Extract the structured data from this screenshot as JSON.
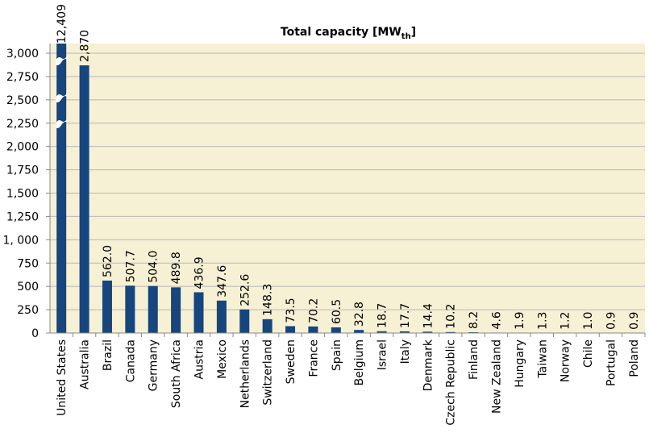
{
  "chart_data": {
    "type": "bar",
    "title": {
      "text": "Total capacity [MW",
      "subscript": "th",
      "close": "]"
    },
    "categories": [
      "United States",
      "Australia",
      "Brazil",
      "Canada",
      "Germany",
      "South Africa",
      "Austria",
      "Mexico",
      "Netherlands",
      "Switzerland",
      "Sweden",
      "France",
      "Spain",
      "Belgium",
      "Israel",
      "Italy",
      "Denmark",
      "Czech Republic",
      "Finland",
      "New Zealand",
      "Hungary",
      "Taiwan",
      "Norway",
      "Chile",
      "Portugal",
      "Poland"
    ],
    "values": [
      12409,
      2870,
      562.0,
      507.7,
      504.0,
      489.8,
      436.9,
      347.6,
      252.6,
      148.3,
      73.5,
      70.2,
      60.5,
      32.8,
      18.7,
      17.7,
      14.4,
      10.2,
      8.2,
      4.6,
      1.9,
      1.3,
      1.2,
      1.0,
      0.9,
      0.9
    ],
    "value_labels": [
      "12,409",
      "2,870",
      "562.0",
      "507.7",
      "504.0",
      "489.8",
      "436.9",
      "347.6",
      "252.6",
      "148.3",
      "73.5",
      "70.2",
      "60.5",
      "32.8",
      "18.7",
      "17.7",
      "14.4",
      "10.2",
      "8.2",
      "4.6",
      "1.9",
      "1.3",
      "1.2",
      "1.0",
      "0.9",
      "0.9"
    ],
    "color": "#17457d",
    "ylim": [
      0,
      3000
    ],
    "yticks": [
      0,
      250,
      500,
      750,
      {
        "value": 1000,
        "label": "1, 000"
      },
      {
        "value": 1250,
        "label": "1,250"
      },
      {
        "value": 1500,
        "label": "1,500"
      },
      {
        "value": 1750,
        "label": "1,750"
      },
      {
        "value": 2000,
        "label": "2,000"
      },
      {
        "value": 2250,
        "label": "2,250"
      },
      {
        "value": 2500,
        "label": "2,500"
      },
      {
        "value": 2750,
        "label": "2,750"
      },
      {
        "value": 3000,
        "label": "3,000"
      }
    ],
    "grid": true
  }
}
